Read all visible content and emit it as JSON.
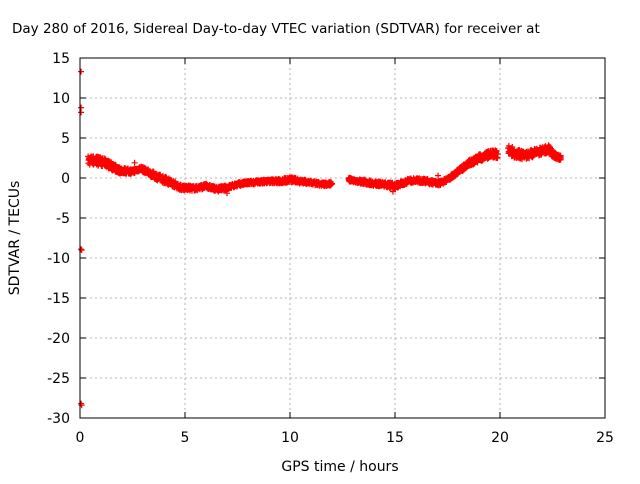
{
  "chart_data": {
    "type": "scatter",
    "title": "Day 280 of 2016, Sidereal Day-to-day VTEC variation (SDTVAR) for receiver at",
    "xlabel": "GPS time / hours",
    "ylabel": "SDTVAR / TECUs",
    "xlim": [
      0,
      25
    ],
    "ylim": [
      -30,
      15
    ],
    "xticks": [
      0,
      5,
      10,
      15,
      20,
      25
    ],
    "yticks": [
      15,
      10,
      5,
      0,
      -5,
      -10,
      -15,
      -20,
      -25,
      -30
    ],
    "grid": true,
    "marker": "plus",
    "color": "#ff0000",
    "series": [
      {
        "isolated_points": [
          [
            0.05,
            13.3
          ],
          [
            0.05,
            8.8
          ],
          [
            0.05,
            8.2
          ],
          [
            0.05,
            -8.9
          ],
          [
            0.08,
            -9.0
          ],
          [
            0.05,
            -28.2
          ],
          [
            0.08,
            -28.4
          ]
        ],
        "band_segments": [
          {
            "points": [
              [
                0.4,
                2.2
              ],
              [
                0.8,
                2.2
              ],
              [
                1.3,
                1.8
              ],
              [
                1.8,
                1.0
              ],
              [
                2.5,
                0.8
              ],
              [
                2.9,
                1.2
              ],
              [
                3.4,
                0.5
              ],
              [
                3.8,
                0.0
              ],
              [
                4.3,
                -0.5
              ],
              [
                4.8,
                -1.2
              ],
              [
                5.5,
                -1.3
              ],
              [
                6.0,
                -1.0
              ],
              [
                6.5,
                -1.4
              ],
              [
                7.0,
                -1.2
              ],
              [
                7.5,
                -0.8
              ],
              [
                8.0,
                -0.6
              ],
              [
                8.5,
                -0.5
              ],
              [
                9.0,
                -0.4
              ],
              [
                9.5,
                -0.4
              ],
              [
                10.0,
                -0.2
              ],
              [
                10.5,
                -0.4
              ],
              [
                11.0,
                -0.6
              ],
              [
                11.5,
                -0.8
              ],
              [
                12.0,
                -0.7
              ]
            ],
            "spread": [
              1.2,
              1.2,
              1.0,
              0.9,
              0.6,
              0.6,
              0.8,
              0.9,
              0.9,
              0.7,
              0.6,
              0.6,
              0.6,
              0.6,
              0.5,
              0.5,
              0.5,
              0.5,
              0.6,
              0.7,
              0.6,
              0.5,
              0.5,
              0.5
            ]
          },
          {
            "points": [
              [
                12.8,
                -0.2
              ],
              [
                13.2,
                -0.4
              ],
              [
                13.6,
                -0.5
              ],
              [
                14.0,
                -0.7
              ],
              [
                14.5,
                -0.8
              ],
              [
                15.0,
                -1.0
              ],
              [
                15.3,
                -0.7
              ],
              [
                15.7,
                -0.3
              ],
              [
                16.2,
                -0.3
              ],
              [
                16.7,
                -0.5
              ],
              [
                17.1,
                -0.7
              ],
              [
                17.5,
                -0.2
              ],
              [
                18.0,
                0.8
              ],
              [
                18.5,
                1.8
              ],
              [
                19.0,
                2.5
              ],
              [
                19.5,
                2.9
              ],
              [
                19.9,
                3.0
              ]
            ],
            "spread": [
              0.5,
              0.5,
              0.6,
              0.6,
              0.6,
              0.8,
              0.6,
              0.6,
              0.6,
              0.6,
              0.6,
              0.5,
              0.6,
              0.8,
              0.9,
              1.0,
              1.0
            ]
          },
          {
            "points": [
              [
                20.4,
                3.5
              ],
              [
                20.8,
                3.0
              ],
              [
                21.2,
                2.8
              ],
              [
                21.6,
                3.1
              ],
              [
                22.0,
                3.4
              ],
              [
                22.3,
                3.6
              ],
              [
                22.6,
                2.8
              ],
              [
                22.9,
                2.5
              ]
            ],
            "spread": [
              1.3,
              1.2,
              1.0,
              1.0,
              1.0,
              1.0,
              0.8,
              0.6
            ]
          }
        ],
        "extra_points": [
          [
            17.05,
            0.3
          ],
          [
            7.0,
            -1.9
          ],
          [
            2.6,
            1.9
          ],
          [
            14.9,
            -1.7
          ]
        ]
      }
    ]
  }
}
